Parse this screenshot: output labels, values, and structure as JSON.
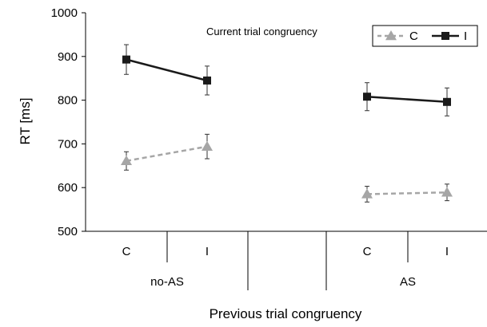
{
  "chart_data": {
    "type": "line",
    "ylabel": "RT [ms]",
    "xlabel": "Previous trial congruency",
    "legend_title": "Current trial congruency",
    "legend_position": "top-right",
    "ylim": [
      500,
      1000
    ],
    "yticks": [
      500,
      600,
      700,
      800,
      900,
      1000
    ],
    "grid": false,
    "categories": [
      "C",
      "I",
      "C",
      "I"
    ],
    "groups": [
      "no-AS",
      "AS"
    ],
    "series": [
      {
        "name": "C",
        "color": "#a6a6a6",
        "marker": "triangle",
        "line_style": "dashed",
        "points": [
          {
            "group": "no-AS",
            "category": "C",
            "y": 661,
            "err": 21
          },
          {
            "group": "no-AS",
            "category": "I",
            "y": 694,
            "err": 28
          },
          {
            "group": "AS",
            "category": "C",
            "y": 585,
            "err": 18
          },
          {
            "group": "AS",
            "category": "I",
            "y": 589,
            "err": 19
          }
        ]
      },
      {
        "name": "I",
        "color": "#1a1a1a",
        "marker": "square",
        "line_style": "solid",
        "points": [
          {
            "group": "no-AS",
            "category": "C",
            "y": 893,
            "err": 34
          },
          {
            "group": "no-AS",
            "category": "I",
            "y": 845,
            "err": 33
          },
          {
            "group": "AS",
            "category": "C",
            "y": 808,
            "err": 32
          },
          {
            "group": "AS",
            "category": "I",
            "y": 796,
            "err": 32
          }
        ]
      }
    ]
  }
}
